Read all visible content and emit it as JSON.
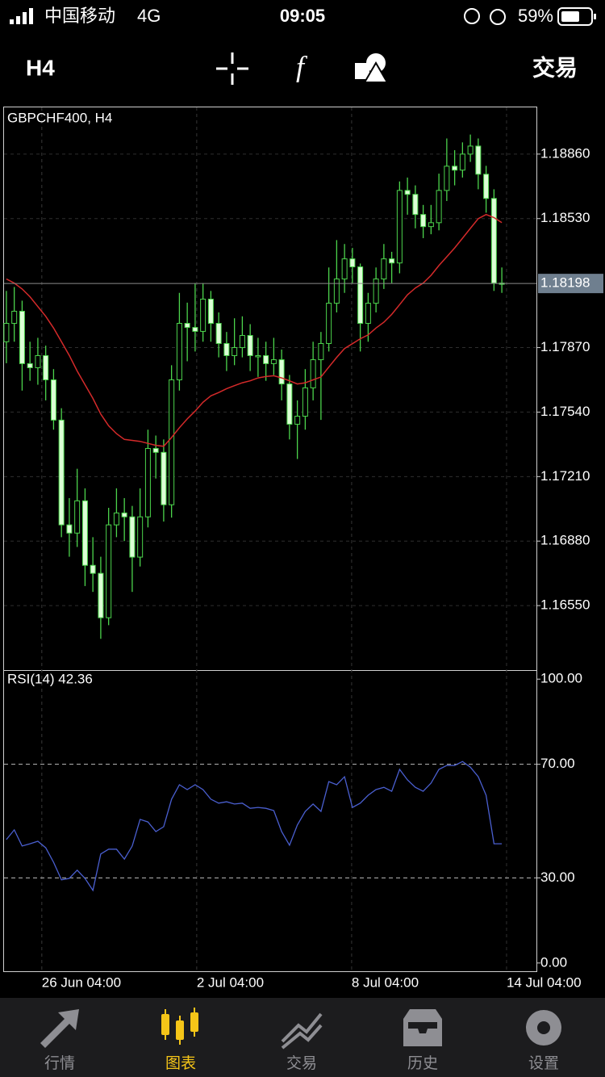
{
  "status_bar": {
    "carrier": "中国移动",
    "network": "4G",
    "time": "09:05",
    "battery": "59%"
  },
  "toolbar": {
    "timeframe": "H4",
    "trade": "交易"
  },
  "chart_data": [
    {
      "type": "candlestick",
      "title": "GBPCHF400, H4",
      "bull_color": "#4cd44c",
      "bear_color": "#dcffd6",
      "xlim": [
        -0.3,
        67.4
      ],
      "xticks": [
        {
          "value": 4.5,
          "label": "26 Jun 04:00"
        },
        {
          "value": 24.2,
          "label": "2 Jul 04:00"
        },
        {
          "value": 43.9,
          "label": "8 Jul 04:00"
        },
        {
          "value": 63.6,
          "label": "14 Jul 04:00"
        }
      ],
      "ylim": [
        1.1622,
        1.19099
      ],
      "yticks": [
        {
          "value": 1.1886,
          "label": "1.18860"
        },
        {
          "value": 1.1853,
          "label": "1.18530"
        },
        {
          "value": 1.1787,
          "label": "1.17870"
        },
        {
          "value": 1.1754,
          "label": "1.17540"
        },
        {
          "value": 1.1721,
          "label": "1.17210"
        },
        {
          "value": 1.1688,
          "label": "1.16880"
        },
        {
          "value": 1.1655,
          "label": "1.16550"
        }
      ],
      "current_price": {
        "value": 1.18198,
        "label": "1.18198"
      },
      "candles": [
        [
          1.179,
          1.1816,
          1.1779,
          1.17994
        ],
        [
          1.17994,
          1.1818,
          1.179,
          1.18056
        ],
        [
          1.18056,
          1.1811,
          1.1765,
          1.17788
        ],
        [
          1.17788,
          1.179,
          1.177,
          1.17767
        ],
        [
          1.17767,
          1.1792,
          1.1768,
          1.17829
        ],
        [
          1.17829,
          1.1788,
          1.176,
          1.17705
        ],
        [
          1.17705,
          1.1776,
          1.1745,
          1.17499
        ],
        [
          1.17499,
          1.1756,
          1.169,
          1.16963
        ],
        [
          1.16963,
          1.171,
          1.168,
          1.16921
        ],
        [
          1.16921,
          1.1725,
          1.1685,
          1.17086
        ],
        [
          1.17086,
          1.1715,
          1.1665,
          1.16756
        ],
        [
          1.16756,
          1.169,
          1.1662,
          1.16715
        ],
        [
          1.16715,
          1.168,
          1.1638,
          1.16488
        ],
        [
          1.16488,
          1.1705,
          1.1645,
          1.16963
        ],
        [
          1.16963,
          1.1715,
          1.169,
          1.17024
        ],
        [
          1.17024,
          1.171,
          1.1688,
          1.17004
        ],
        [
          1.17004,
          1.1706,
          1.1662,
          1.16798
        ],
        [
          1.16798,
          1.1715,
          1.1675,
          1.17004
        ],
        [
          1.17004,
          1.1745,
          1.1695,
          1.17354
        ],
        [
          1.17354,
          1.1742,
          1.172,
          1.17334
        ],
        [
          1.17334,
          1.174,
          1.1698,
          1.17066
        ],
        [
          1.17066,
          1.1778,
          1.17,
          1.17705
        ],
        [
          1.17705,
          1.1815,
          1.1765,
          1.17994
        ],
        [
          1.17994,
          1.181,
          1.178,
          1.17973
        ],
        [
          1.17973,
          1.182,
          1.1785,
          1.17953
        ],
        [
          1.17953,
          1.182,
          1.179,
          1.18118
        ],
        [
          1.18118,
          1.1816,
          1.179,
          1.17994
        ],
        [
          1.17994,
          1.1805,
          1.1782,
          1.17891
        ],
        [
          1.17891,
          1.1795,
          1.1775,
          1.17829
        ],
        [
          1.17829,
          1.1802,
          1.1778,
          1.1787
        ],
        [
          1.1787,
          1.1803,
          1.1782,
          1.17932
        ],
        [
          1.17932,
          1.1799,
          1.1775,
          1.17829
        ],
        [
          1.17829,
          1.1792,
          1.1772,
          1.17829
        ],
        [
          1.17829,
          1.179,
          1.177,
          1.17788
        ],
        [
          1.17788,
          1.1792,
          1.1773,
          1.17808
        ],
        [
          1.17808,
          1.1786,
          1.176,
          1.17684
        ],
        [
          1.17684,
          1.1773,
          1.174,
          1.17478
        ],
        [
          1.17478,
          1.176,
          1.173,
          1.17519
        ],
        [
          1.17519,
          1.1776,
          1.1745,
          1.17664
        ],
        [
          1.17664,
          1.179,
          1.176,
          1.17808
        ],
        [
          1.17808,
          1.1795,
          1.175,
          1.17891
        ],
        [
          1.17891,
          1.1828,
          1.1785,
          1.18097
        ],
        [
          1.18097,
          1.1842,
          1.1805,
          1.18221
        ],
        [
          1.18221,
          1.184,
          1.1815,
          1.18324
        ],
        [
          1.18324,
          1.1838,
          1.182,
          1.18283
        ],
        [
          1.18283,
          1.183,
          1.1785,
          1.17994
        ],
        [
          1.17994,
          1.1815,
          1.179,
          1.18097
        ],
        [
          1.18097,
          1.1828,
          1.1805,
          1.18221
        ],
        [
          1.18221,
          1.184,
          1.1817,
          1.18324
        ],
        [
          1.18324,
          1.1836,
          1.182,
          1.18303
        ],
        [
          1.18303,
          1.1872,
          1.1825,
          1.18674
        ],
        [
          1.18674,
          1.1874,
          1.1855,
          1.18654
        ],
        [
          1.18654,
          1.187,
          1.1848,
          1.18551
        ],
        [
          1.18551,
          1.186,
          1.1843,
          1.18489
        ],
        [
          1.18489,
          1.186,
          1.1845,
          1.18509
        ],
        [
          1.18509,
          1.1876,
          1.1847,
          1.18674
        ],
        [
          1.18674,
          1.1894,
          1.1862,
          1.18798
        ],
        [
          1.18798,
          1.1888,
          1.187,
          1.18778
        ],
        [
          1.18778,
          1.1892,
          1.1874,
          1.1886
        ],
        [
          1.1886,
          1.1896,
          1.1882,
          1.18901
        ],
        [
          1.18901,
          1.1894,
          1.1868,
          1.18757
        ],
        [
          1.18757,
          1.188,
          1.1856,
          1.18633
        ],
        [
          1.18633,
          1.1868,
          1.1816,
          1.182
        ],
        [
          1.182,
          1.1828,
          1.1815,
          1.18198
        ]
      ],
      "ma": {
        "color": "#d42a2a",
        "values": [
          1.18221,
          1.182,
          1.1817,
          1.1813,
          1.1808,
          1.1803,
          1.1797,
          1.179,
          1.1783,
          1.1775,
          1.1768,
          1.1761,
          1.1753,
          1.1747,
          1.1743,
          1.174,
          1.17395,
          1.1739,
          1.1738,
          1.1737,
          1.17365,
          1.1741,
          1.1746,
          1.17505,
          1.17545,
          1.1759,
          1.17623,
          1.1764,
          1.1766,
          1.17675,
          1.1769,
          1.177,
          1.17715,
          1.17722,
          1.17726,
          1.17715,
          1.177,
          1.17684,
          1.1769,
          1.17705,
          1.1772,
          1.1777,
          1.1782,
          1.17865,
          1.1789,
          1.17915,
          1.17935,
          1.1797,
          1.18,
          1.1804,
          1.1809,
          1.1814,
          1.18175,
          1.182,
          1.1824,
          1.1829,
          1.18335,
          1.1838,
          1.1843,
          1.1848,
          1.1853,
          1.18551,
          1.18535,
          1.18509
        ]
      }
    },
    {
      "type": "line",
      "title": "RSI(14) 42.36",
      "color": "#4a5fd0",
      "ylim": [
        -2.9,
        102.9
      ],
      "yticks": [
        {
          "value": 100,
          "label": "100.00"
        },
        {
          "value": 70,
          "label": "70.00"
        },
        {
          "value": 30,
          "label": "30.00"
        },
        {
          "value": 0,
          "label": "0.00"
        }
      ],
      "levels": [
        70,
        30
      ],
      "values": [
        43.5,
        46.9,
        41.2,
        42.0,
        42.9,
        40.6,
        35.5,
        29.3,
        29.8,
        32.7,
        29.8,
        25.6,
        38.4,
        40.1,
        40.1,
        36.6,
        41.2,
        50.6,
        49.7,
        46.3,
        48.0,
        57.7,
        62.8,
        61.1,
        62.8,
        61.1,
        57.7,
        56.3,
        56.8,
        56.0,
        56.3,
        54.5,
        54.8,
        54.5,
        53.7,
        46.3,
        41.5,
        48.6,
        53.4,
        56.0,
        53.4,
        63.9,
        62.8,
        65.6,
        54.8,
        56.3,
        59.1,
        61.1,
        61.9,
        60.5,
        68.2,
        64.5,
        61.9,
        60.5,
        63.4,
        68.2,
        69.6,
        69.6,
        71.0,
        69.0,
        65.6,
        59.1,
        42.0,
        42.0
      ]
    }
  ],
  "tab_bar": {
    "active_color": "#f5c518",
    "items": [
      "行情",
      "图表",
      "交易",
      "历史",
      "设置"
    ],
    "active": 1
  }
}
